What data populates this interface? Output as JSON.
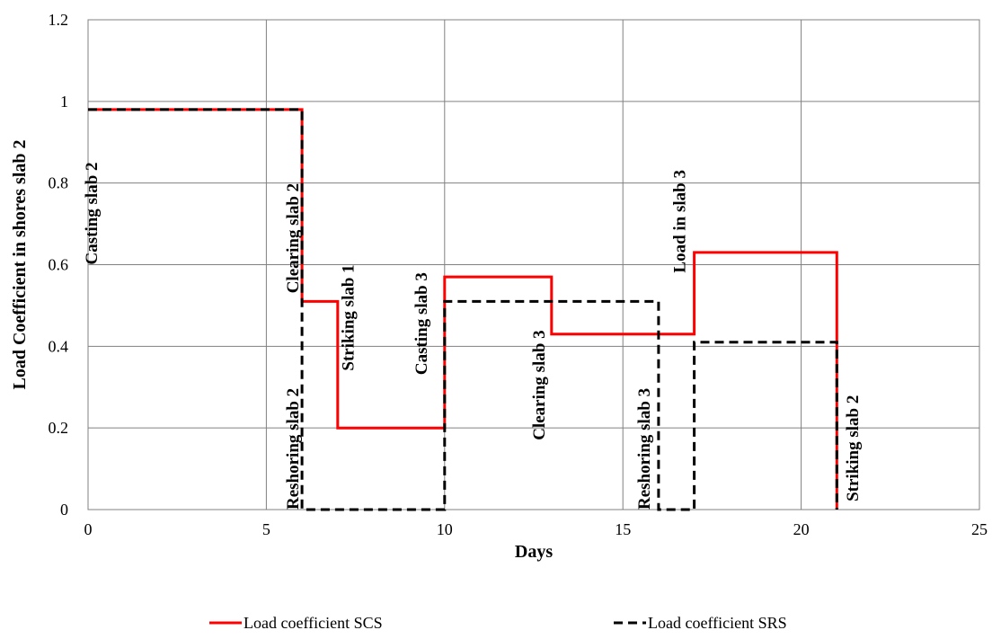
{
  "chart_data": {
    "type": "line",
    "title": "",
    "xlabel": "Days",
    "ylabel": "Load Coefficient in shores slab 2",
    "xlim": [
      0,
      25
    ],
    "ylim": [
      0,
      1.2
    ],
    "x_ticks": [
      0,
      5,
      10,
      15,
      20,
      25
    ],
    "y_ticks": [
      0,
      0.2,
      0.4,
      0.6,
      0.8,
      1,
      1.2
    ],
    "x_tick_labels": [
      "0",
      "5",
      "10",
      "15",
      "20",
      "25"
    ],
    "y_tick_labels": [
      "0",
      "0.2",
      "0.4",
      "0.6",
      "0.8",
      "1",
      "1.2"
    ],
    "grid": true,
    "legend_position": "bottom",
    "series": [
      {
        "name": "Load coefficient SCS",
        "color": "#ff0000",
        "style": "solid",
        "points": [
          [
            0,
            0.98
          ],
          [
            6,
            0.98
          ],
          [
            6,
            0.51
          ],
          [
            7,
            0.51
          ],
          [
            7,
            0.2
          ],
          [
            10,
            0.2
          ],
          [
            10,
            0.57
          ],
          [
            13,
            0.57
          ],
          [
            13,
            0.43
          ],
          [
            17,
            0.43
          ],
          [
            17,
            0.63
          ],
          [
            21,
            0.63
          ],
          [
            21,
            0
          ]
        ]
      },
      {
        "name": "Load coefficient SRS",
        "color": "#000000",
        "style": "dashed",
        "points": [
          [
            0,
            0.98
          ],
          [
            6,
            0.98
          ],
          [
            6,
            0
          ],
          [
            10,
            0
          ],
          [
            10,
            0.51
          ],
          [
            16,
            0.51
          ],
          [
            16,
            0
          ],
          [
            17,
            0
          ],
          [
            17,
            0.41
          ],
          [
            21,
            0.41
          ],
          [
            21,
            0
          ]
        ]
      }
    ],
    "annotations": [
      {
        "text": "Casting slab 2",
        "x": 0.25,
        "y": 0.6
      },
      {
        "text": "Clearing slab 2",
        "x": 5.9,
        "y": 0.53
      },
      {
        "text": "Reshoring slab 2",
        "x": 5.9,
        "y": 0.0
      },
      {
        "text": "Striking slab 1",
        "x": 7.45,
        "y": 0.34
      },
      {
        "text": "Casting slab 3",
        "x": 9.5,
        "y": 0.33
      },
      {
        "text": "Clearing slab 3",
        "x": 12.8,
        "y": 0.17
      },
      {
        "text": "Reshoring slab 3",
        "x": 15.75,
        "y": 0.0
      },
      {
        "text": "Load in slab 3",
        "x": 16.75,
        "y": 0.58
      },
      {
        "text": "Striking slab 2",
        "x": 21.6,
        "y": 0.02
      }
    ]
  }
}
